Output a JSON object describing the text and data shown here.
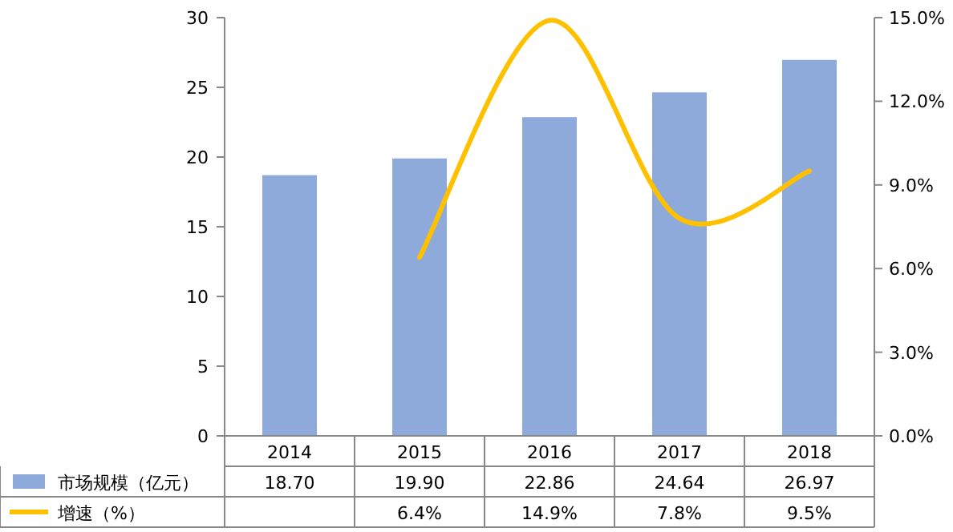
{
  "chart_data": {
    "type": "bar",
    "categories": [
      "2014",
      "2015",
      "2016",
      "2017",
      "2018"
    ],
    "series": [
      {
        "name": "市场规模（亿元）",
        "color": "#8eaadb",
        "values": [
          18.7,
          19.9,
          22.86,
          24.64,
          26.97
        ],
        "value_labels": [
          "18.70",
          "19.90",
          "22.86",
          "24.64",
          "26.97"
        ]
      },
      {
        "name": "增速（%）",
        "type": "line",
        "axis": "y2",
        "color": "#ffc000",
        "values": [
          null,
          6.4,
          14.9,
          7.8,
          9.5
        ],
        "value_labels": [
          null,
          "6.4%",
          "14.9%",
          "7.8%",
          "9.5%"
        ]
      }
    ],
    "ylim": [
      0,
      30
    ],
    "yticks": [
      0,
      5,
      10,
      15,
      20,
      25,
      30
    ],
    "y2lim": [
      0,
      15
    ],
    "y2ticks": [
      {
        "value": 0,
        "label": "0.0%"
      },
      {
        "value": 3,
        "label": "3.0%"
      },
      {
        "value": 6,
        "label": "6.0%"
      },
      {
        "value": 9,
        "label": "9.0%"
      },
      {
        "value": 12,
        "label": "12.0%"
      },
      {
        "value": 15,
        "label": "15.0%"
      }
    ],
    "legend": "bottom",
    "grid": false
  }
}
